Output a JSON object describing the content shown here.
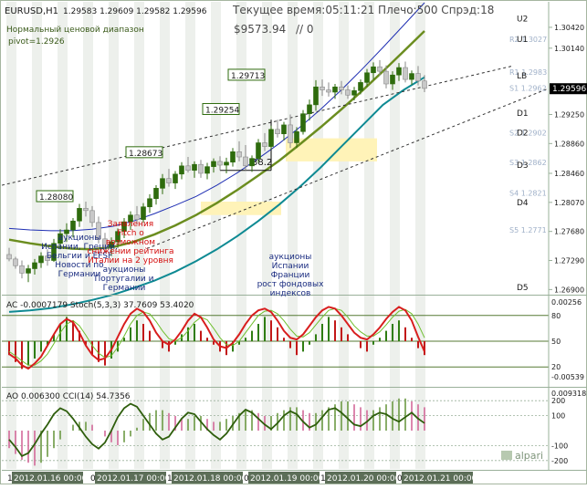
{
  "header": {
    "symbol": "EURUSD,H1",
    "ohlc": "1.29583 1.29609 1.29582 1.29596",
    "server_time": "Текущее время:05:11:21 Плечо:500 Спрэд:18",
    "balance": "$9573.94",
    "slash": "// 0",
    "range_title": "Нормальный ценовой диапазон",
    "pivot": "pivot=1.2926"
  },
  "colors": {
    "bull": "#2e6b0d",
    "bear": "#c8c8c8",
    "ma_blue": "#1f2fb3",
    "ma_olive": "#6b8d1f",
    "channel_teal": "#0e8a93",
    "stoch_main": "#d81e1e",
    "stoch_signal": "#6fbf2f",
    "ac_up": "#2f7d12",
    "ac_down": "#c21818",
    "cci": "#2e5e0c",
    "axis_line": "#9ab09a",
    "pivot_band": "#fff3b8"
  },
  "chart_data": {
    "type": "candlestick",
    "main": {
      "y_min": 1.2688,
      "y_max": 1.3075,
      "y_ticks": [
        "1.30420",
        "1.30140",
        "1.29250",
        "1.28860",
        "1.28460",
        "1.28070",
        "1.27680",
        "1.27290",
        "1.26900"
      ],
      "current_price": "1.29596",
      "candles": [
        [
          1.2737,
          1.2746,
          1.2728,
          1.2731
        ],
        [
          1.2731,
          1.2734,
          1.2718,
          1.2722
        ],
        [
          1.2722,
          1.2729,
          1.2705,
          1.2712
        ],
        [
          1.2712,
          1.2723,
          1.27,
          1.2718
        ],
        [
          1.2718,
          1.2731,
          1.271,
          1.2726
        ],
        [
          1.2726,
          1.274,
          1.2719,
          1.2735
        ],
        [
          1.2735,
          1.2744,
          1.2722,
          1.2729
        ],
        [
          1.2729,
          1.2758,
          1.2727,
          1.2752
        ],
        [
          1.2752,
          1.2771,
          1.2744,
          1.2765
        ],
        [
          1.2765,
          1.2779,
          1.2754,
          1.277
        ],
        [
          1.277,
          1.2786,
          1.276,
          1.2782
        ],
        [
          1.2782,
          1.2805,
          1.2774,
          1.2799
        ],
        [
          1.2799,
          1.2808,
          1.2788,
          1.2796
        ],
        [
          1.2796,
          1.2802,
          1.2774,
          1.278
        ],
        [
          1.278,
          1.2788,
          1.2752,
          1.2758
        ],
        [
          1.2758,
          1.2766,
          1.274,
          1.2747
        ],
        [
          1.2747,
          1.276,
          1.2735,
          1.2754
        ],
        [
          1.2754,
          1.2772,
          1.2746,
          1.2768
        ],
        [
          1.2768,
          1.2786,
          1.2759,
          1.2781
        ],
        [
          1.2781,
          1.2795,
          1.277,
          1.279
        ],
        [
          1.279,
          1.2802,
          1.2777,
          1.2784
        ],
        [
          1.2784,
          1.2806,
          1.278,
          1.2801
        ],
        [
          1.2801,
          1.2818,
          1.2793,
          1.2812
        ],
        [
          1.2812,
          1.283,
          1.2804,
          1.2826
        ],
        [
          1.2826,
          1.2845,
          1.2818,
          1.2839
        ],
        [
          1.2839,
          1.2852,
          1.2828,
          1.2833
        ],
        [
          1.2833,
          1.2849,
          1.2825,
          1.2845
        ],
        [
          1.2845,
          1.2861,
          1.2838,
          1.2856
        ],
        [
          1.2856,
          1.2868,
          1.2847,
          1.285
        ],
        [
          1.285,
          1.2862,
          1.284,
          1.2858
        ],
        [
          1.2858,
          1.2864,
          1.284,
          1.2846
        ],
        [
          1.2846,
          1.286,
          1.2838,
          1.2855
        ],
        [
          1.2855,
          1.2866,
          1.2847,
          1.2862
        ],
        [
          1.2862,
          1.2869,
          1.285,
          1.2857
        ],
        [
          1.2857,
          1.2867,
          1.2846,
          1.2861
        ],
        [
          1.2861,
          1.288,
          1.2855,
          1.2875
        ],
        [
          1.2875,
          1.2889,
          1.2862,
          1.2868
        ],
        [
          1.2868,
          1.2884,
          1.285,
          1.2856
        ],
        [
          1.2856,
          1.287,
          1.2848,
          1.2866
        ],
        [
          1.2866,
          1.2892,
          1.286,
          1.2887
        ],
        [
          1.2887,
          1.29,
          1.2876,
          1.2882
        ],
        [
          1.2882,
          1.291,
          1.2878,
          1.2905
        ],
        [
          1.2905,
          1.2918,
          1.2894,
          1.2899
        ],
        [
          1.2899,
          1.2915,
          1.289,
          1.2911
        ],
        [
          1.2911,
          1.2925,
          1.288,
          1.2887
        ],
        [
          1.2887,
          1.2908,
          1.288,
          1.2902
        ],
        [
          1.2902,
          1.2931,
          1.2898,
          1.2926
        ],
        [
          1.2926,
          1.2945,
          1.2917,
          1.2938
        ],
        [
          1.2938,
          1.2971,
          1.293,
          1.2962
        ],
        [
          1.2962,
          1.2972,
          1.295,
          1.2958
        ],
        [
          1.2958,
          1.2968,
          1.2949,
          1.2955
        ],
        [
          1.2955,
          1.2966,
          1.2946,
          1.2962
        ],
        [
          1.2962,
          1.297,
          1.2952,
          1.2958
        ],
        [
          1.2958,
          1.2964,
          1.2946,
          1.2951
        ],
        [
          1.2951,
          1.2962,
          1.2944,
          1.2957
        ],
        [
          1.2957,
          1.2972,
          1.2952,
          1.2968
        ],
        [
          1.2968,
          1.2986,
          1.2962,
          1.2981
        ],
        [
          1.2981,
          1.2995,
          1.2972,
          1.2989
        ],
        [
          1.2989,
          1.2998,
          1.2977,
          1.2983
        ],
        [
          1.2983,
          1.2991,
          1.296,
          1.2966
        ],
        [
          1.2966,
          1.2983,
          1.2958,
          1.2978
        ],
        [
          1.2978,
          1.2994,
          1.297,
          1.2988
        ],
        [
          1.2988,
          1.2996,
          1.2968,
          1.2972
        ],
        [
          1.2972,
          1.2984,
          1.2965,
          1.298
        ],
        [
          1.298,
          1.299,
          1.2964,
          1.297
        ],
        [
          1.297,
          1.2978,
          1.2955,
          1.296
        ]
      ],
      "labels": [
        {
          "text": "1.28080",
          "xi": 10,
          "price": 1.2808
        },
        {
          "text": "1.28673",
          "xi": 24,
          "price": 1.2867
        },
        {
          "text": "1.29254",
          "xi": 36,
          "price": 1.2925
        },
        {
          "text": "1.29713",
          "xi": 40,
          "price": 1.2971
        }
      ],
      "pivot_levels": [
        {
          "name": "U2",
          "price": 1.3055
        },
        {
          "name": "R2 1.3027",
          "price": 1.3027
        },
        {
          "name": "U1",
          "price": 1.3027
        },
        {
          "name": "R1 1.2983",
          "price": 1.2983
        },
        {
          "name": "LB",
          "price": 1.2978
        },
        {
          "name": "S1 1.2962",
          "price": 1.2962
        },
        {
          "name": "D1",
          "price": 1.2928
        },
        {
          "name": "S2 1.2902",
          "price": 1.2902
        },
        {
          "name": "D2",
          "price": 1.2902
        },
        {
          "name": "S3 1.2862",
          "price": 1.2862
        },
        {
          "name": "D3",
          "price": 1.2858
        },
        {
          "name": "S4 1.2821",
          "price": 1.2821
        },
        {
          "name": "D4",
          "price": 1.2808
        },
        {
          "name": "S5 1.2771",
          "price": 1.2771
        },
        {
          "name": "D5",
          "price": 1.2694
        }
      ],
      "measure_label": "38.2",
      "ma_blue": [
        1.2772,
        1.277,
        1.2769,
        1.2769,
        1.2771,
        1.2775,
        1.2782,
        1.2792,
        1.2803,
        1.2815,
        1.283,
        1.2847,
        1.2866,
        1.2886,
        1.2908,
        1.2932,
        1.2958,
        1.2986,
        1.3015,
        1.3045,
        1.3075
      ],
      "ma_olive": [
        1.2757,
        1.2752,
        1.2748,
        1.2745,
        1.2744,
        1.2747,
        1.2754,
        1.2764,
        1.2776,
        1.279,
        1.2806,
        1.2824,
        1.2843,
        1.2863,
        1.2885,
        1.2908,
        1.2932,
        1.2957,
        1.2983,
        1.301,
        1.3037
      ],
      "channel_teal": [
        1.266,
        1.2662,
        1.2665,
        1.267,
        1.2676,
        1.2683,
        1.2692,
        1.2702,
        1.2714,
        1.2728,
        1.2744,
        1.2762,
        1.2782,
        1.2804,
        1.2828,
        1.2854,
        1.2882,
        1.291,
        1.2938,
        1.2958,
        1.2975
      ]
    },
    "annotations": [
      {
        "text": "аукционы\nИспании, Греции,\nБельгии и EFSF\nНовости по\nГермании",
        "xi": 11,
        "color": "#1a2c80"
      },
      {
        "text": "Заявления\nFitch о\nвозможном\nснижении рейтинга\nИталии на 2 уровня",
        "xi": 19,
        "color": "#d40d0d"
      },
      {
        "text": "аукционы\nПортугалии и\nГермании",
        "xi": 18,
        "color": "#1a2c80"
      },
      {
        "text": "аукционы\nИспании\nФранции\nрост фондовых\nиндексов",
        "xi": 44,
        "color": "#1a2c80"
      }
    ],
    "ac_stoch": {
      "title": "AC -0.0007179  Stoch(5,3,3) 37.7609 53.4020",
      "y_max_label": "0.00256",
      "y_min_label": "-0.00539",
      "levels": [
        "80",
        "50",
        "20"
      ],
      "ac": [
        -8,
        -12,
        -16,
        -14,
        -10,
        -6,
        -2,
        4,
        10,
        14,
        12,
        6,
        -2,
        -8,
        -12,
        -14,
        -10,
        -6,
        2,
        8,
        12,
        10,
        6,
        0,
        -4,
        -6,
        -2,
        4,
        8,
        10,
        6,
        2,
        -2,
        -6,
        -8,
        -6,
        -2,
        2,
        6,
        10,
        14,
        12,
        8,
        2,
        -4,
        -8,
        -6,
        -2,
        4,
        10,
        14,
        12,
        8,
        4,
        0,
        -4,
        -6,
        -2,
        2,
        6,
        10,
        12,
        8,
        2,
        -4,
        -8
      ],
      "stoch": [
        35,
        30,
        22,
        18,
        24,
        32,
        45,
        58,
        70,
        76,
        72,
        60,
        45,
        34,
        28,
        30,
        40,
        55,
        70,
        82,
        88,
        84,
        74,
        60,
        50,
        46,
        52,
        62,
        74,
        82,
        78,
        66,
        52,
        44,
        42,
        48,
        58,
        70,
        80,
        86,
        88,
        84,
        74,
        62,
        54,
        52,
        58,
        68,
        78,
        86,
        90,
        88,
        80,
        70,
        60,
        54,
        52,
        58,
        66,
        76,
        84,
        90,
        86,
        74,
        55,
        38
      ],
      "signal": [
        38,
        33,
        27,
        22,
        22,
        27,
        35,
        47,
        60,
        70,
        74,
        68,
        57,
        45,
        36,
        31,
        33,
        43,
        56,
        70,
        80,
        84,
        82,
        73,
        62,
        53,
        50,
        54,
        62,
        72,
        78,
        75,
        65,
        54,
        46,
        45,
        50,
        60,
        70,
        80,
        85,
        86,
        82,
        74,
        64,
        56,
        55,
        60,
        69,
        78,
        86,
        88,
        86,
        78,
        68,
        61,
        56,
        56,
        61,
        69,
        78,
        85,
        87,
        82,
        70,
        54
      ]
    },
    "ao_cci": {
      "title": "AO 0.006300  CCI(14) 54.7356",
      "y_max_label": "0.009318",
      "levels": [
        "200",
        "100",
        "-100",
        "-200"
      ],
      "ao": [
        -6,
        -8,
        -10,
        -11,
        -12,
        -11,
        -9,
        -6,
        -3,
        0,
        2,
        3,
        3,
        2,
        0,
        -2,
        -4,
        -5,
        -4,
        -2,
        1,
        4,
        6,
        7,
        7,
        6,
        5,
        4,
        4,
        5,
        5,
        4,
        3,
        3,
        4,
        5,
        6,
        7,
        7,
        6,
        5,
        5,
        6,
        7,
        8,
        8,
        7,
        6,
        6,
        7,
        8,
        9,
        10,
        10,
        9,
        8,
        7,
        7,
        8,
        9,
        10,
        11,
        11,
        10,
        9,
        8
      ],
      "cci": [
        -60,
        -110,
        -170,
        -150,
        -90,
        -20,
        40,
        110,
        150,
        130,
        80,
        20,
        -40,
        -90,
        -120,
        -80,
        0,
        90,
        150,
        180,
        160,
        100,
        40,
        -20,
        -60,
        -40,
        20,
        80,
        120,
        110,
        60,
        10,
        -30,
        -60,
        -20,
        40,
        100,
        140,
        120,
        80,
        40,
        10,
        50,
        100,
        130,
        110,
        60,
        20,
        40,
        90,
        140,
        150,
        120,
        80,
        40,
        30,
        60,
        100,
        120,
        110,
        80,
        60,
        90,
        120,
        80,
        50
      ]
    },
    "x_axis": {
      "labels": [
        {
          "text": "13",
          "xi": 0
        },
        {
          "text": "2012.01.16 00:00",
          "xi": 1
        },
        {
          "text": "04",
          "xi": 13
        },
        {
          "text": "2012.01.17 00:00",
          "xi": 14
        },
        {
          "text": "17",
          "xi": 25
        },
        {
          "text": "2012.01.18 00:00",
          "xi": 26
        },
        {
          "text": "04",
          "xi": 37
        },
        {
          "text": "2012.01.19 00:00",
          "xi": 38
        },
        {
          "text": "15",
          "xi": 49
        },
        {
          "text": "2012.01.20 00:00",
          "xi": 50
        },
        {
          "text": "04",
          "xi": 61
        },
        {
          "text": "2012.01.21 00:00",
          "xi": 62
        }
      ]
    },
    "watermark": "alpari"
  }
}
